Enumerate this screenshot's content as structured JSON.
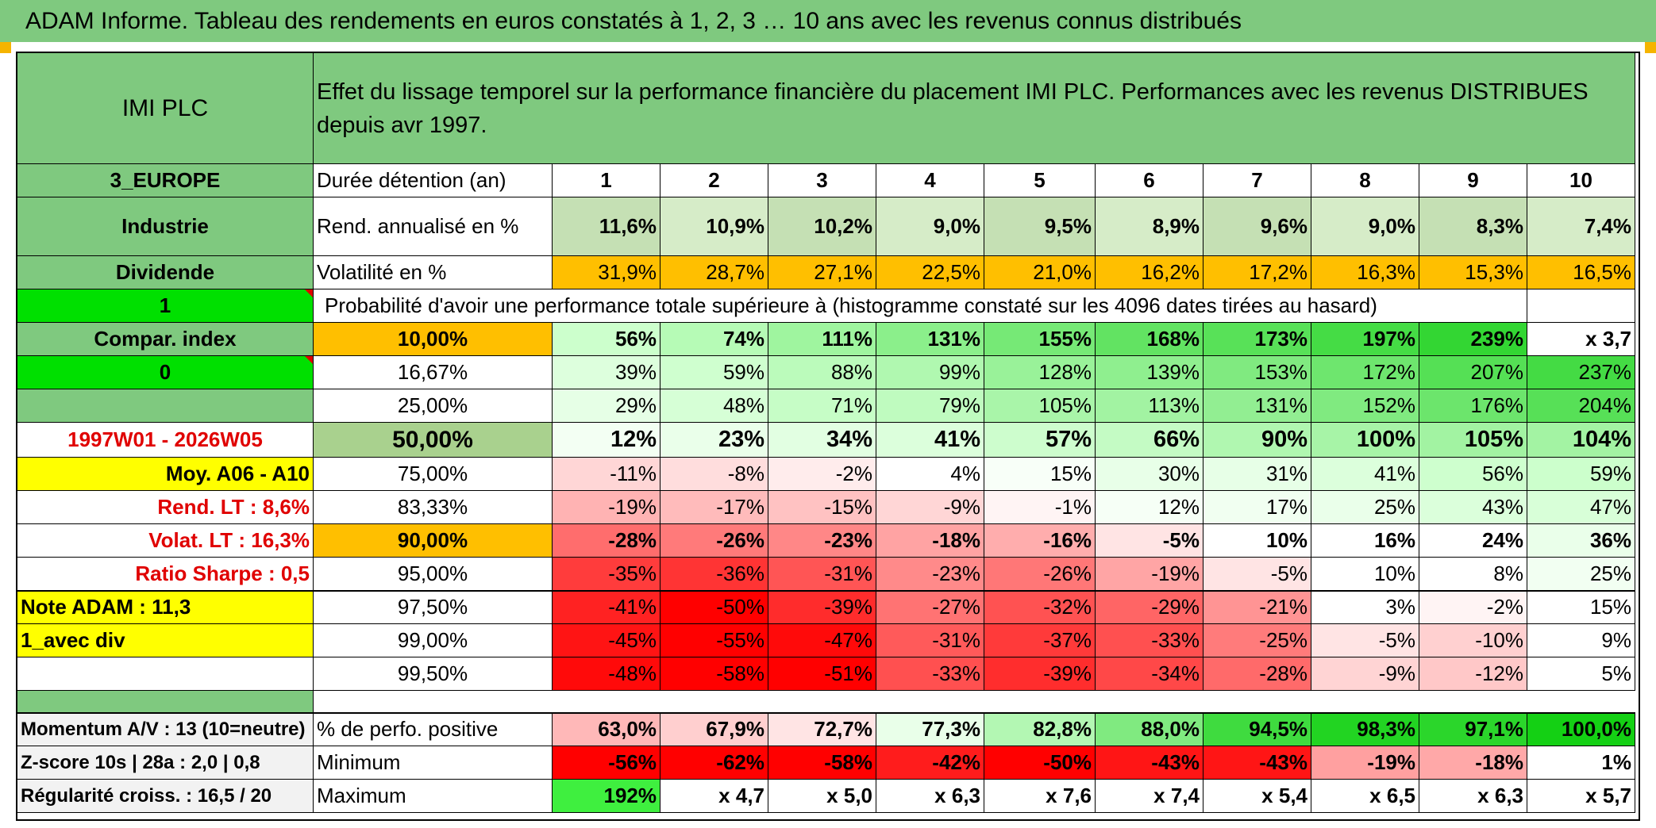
{
  "title": "ADAM Informe. Tableau des rendements en euros constatés à 1, 2, 3 … 10 ans avec les revenus connus distribués",
  "header": {
    "name": "IMI PLC",
    "description": "Effet du lissage temporel sur la performance financière du placement IMI PLC. Performances avec les revenus DISTRIBUES depuis avr 1997."
  },
  "side": {
    "region": "3_EUROPE",
    "sector": "Industrie",
    "dividend": "Dividende",
    "flag1": "1",
    "compar": "Compar. index",
    "flag0": "0",
    "period": "1997W01 - 2026W05",
    "moy": "Moy. A06 - A10",
    "rend_lt": "Rend. LT :   8,6%",
    "volat_lt": "Volat. LT :   16,3%",
    "sharpe": "Ratio Sharpe :   0,5",
    "note": "Note ADAM : 11,3",
    "div": "1_avec div"
  },
  "main": {
    "duration_label": "Durée détention (an)",
    "years": [
      "1",
      "2",
      "3",
      "4",
      "5",
      "6",
      "7",
      "8",
      "9",
      "10"
    ],
    "rend_label": "Rend. annualisé en %",
    "rend": [
      "11,6%",
      "10,9%",
      "10,2%",
      "9,0%",
      "9,5%",
      "8,9%",
      "9,6%",
      "9,0%",
      "8,3%",
      "7,4%"
    ],
    "vol_label": "Volatilité en %",
    "vol": [
      "31,9%",
      "28,7%",
      "27,1%",
      "22,5%",
      "21,0%",
      "16,2%",
      "17,2%",
      "16,3%",
      "15,3%",
      "16,5%"
    ],
    "proba_label": "Probabilité d'avoir une performance totale supérieure à (histogramme constaté sur les 4096 dates tirées au hasard)",
    "rows": [
      {
        "p": "10,00%",
        "v": [
          "56%",
          "74%",
          "111%",
          "131%",
          "155%",
          "168%",
          "173%",
          "197%",
          "239%",
          "x 3,7"
        ],
        "bg": [
          "#ccffcc",
          "#b6fbb6",
          "#9ff59f",
          "#8bef8b",
          "#76e976",
          "#62e362",
          "#58e158",
          "#45dc45",
          "#33d633",
          "#ffffff"
        ]
      },
      {
        "p": "16,67%",
        "v": [
          "39%",
          "59%",
          "88%",
          "99%",
          "128%",
          "139%",
          "153%",
          "172%",
          "207%",
          "237%"
        ],
        "bg": [
          "#ddffdd",
          "#cfffcf",
          "#bbfbbb",
          "#b0f8b0",
          "#99f299",
          "#8fef8f",
          "#80ea80",
          "#6ee66e",
          "#55e055",
          "#44db44"
        ]
      },
      {
        "p": "25,00%",
        "v": [
          "29%",
          "48%",
          "71%",
          "79%",
          "105%",
          "113%",
          "131%",
          "152%",
          "176%",
          "204%"
        ],
        "bg": [
          "#e6ffe6",
          "#d6ffd6",
          "#c6fdc6",
          "#bffbbf",
          "#a9f5a9",
          "#a2f3a2",
          "#92ee92",
          "#80ea80",
          "#6ce56c",
          "#57e057"
        ]
      },
      {
        "p": "50,00%",
        "v": [
          "12%",
          "23%",
          "34%",
          "41%",
          "57%",
          "66%",
          "90%",
          "100%",
          "105%",
          "104%"
        ],
        "bg": [
          "#f3fff3",
          "#eaffea",
          "#e2ffe2",
          "#dcffdc",
          "#cdfdcd",
          "#c4fbc4",
          "#b0f7b0",
          "#a7f4a7",
          "#a2f3a2",
          "#a3f3a3"
        ]
      },
      {
        "p": "75,00%",
        "v": [
          "-11%",
          "-8%",
          "-2%",
          "4%",
          "15%",
          "30%",
          "31%",
          "41%",
          "56%",
          "59%"
        ],
        "bg": [
          "#ffd6d6",
          "#ffdddd",
          "#ffecec",
          "#ffffff",
          "#f8fff8",
          "#e8ffe8",
          "#e7ffe7",
          "#dcffdc",
          "#ceffce",
          "#ccffcc"
        ]
      },
      {
        "p": "83,33%",
        "v": [
          "-19%",
          "-17%",
          "-15%",
          "-9%",
          "-1%",
          "12%",
          "17%",
          "25%",
          "43%",
          "47%"
        ],
        "bg": [
          "#ffb3b3",
          "#ffbbbb",
          "#ffc2c2",
          "#ffd6d6",
          "#fff4f4",
          "#f6fff6",
          "#f1fff1",
          "#eaffea",
          "#dbffdb",
          "#d8ffd8"
        ]
      },
      {
        "p": "90,00%",
        "v": [
          "-28%",
          "-26%",
          "-23%",
          "-18%",
          "-16%",
          "-5%",
          "10%",
          "16%",
          "24%",
          "36%"
        ],
        "bg": [
          "#ff6d6d",
          "#ff7a7a",
          "#ff8787",
          "#ffa3a3",
          "#ffadad",
          "#ffe4e4",
          "#ffffff",
          "#ffffff",
          "#ffffff",
          "#eaffea"
        ]
      },
      {
        "p": "95,00%",
        "v": [
          "-35%",
          "-36%",
          "-31%",
          "-23%",
          "-26%",
          "-19%",
          "-5%",
          "10%",
          "8%",
          "25%"
        ],
        "bg": [
          "#ff3c3c",
          "#ff3434",
          "#ff5555",
          "#ff8a8a",
          "#ff7777",
          "#ffa5a5",
          "#ffe4e4",
          "#ffffff",
          "#ffffff",
          "#f2fff2"
        ]
      },
      {
        "p": "97,50%",
        "v": [
          "-41%",
          "-50%",
          "-39%",
          "-27%",
          "-32%",
          "-29%",
          "-21%",
          "3%",
          "-2%",
          "15%"
        ],
        "bg": [
          "#ff2222",
          "#ff0000",
          "#ff2c2c",
          "#ff7373",
          "#ff5252",
          "#ff6565",
          "#ff9494",
          "#ffffff",
          "#fff4f4",
          "#ffffff"
        ]
      },
      {
        "p": "99,00%",
        "v": [
          "-45%",
          "-55%",
          "-47%",
          "-31%",
          "-37%",
          "-33%",
          "-25%",
          "-5%",
          "-10%",
          "9%"
        ],
        "bg": [
          "#ff1414",
          "#ff0000",
          "#ff0a0a",
          "#ff5a5a",
          "#ff3a3a",
          "#ff5050",
          "#ff7b7b",
          "#ffe4e4",
          "#ffd0d0",
          "#ffffff"
        ]
      },
      {
        "p": "99,50%",
        "v": [
          "-48%",
          "-58%",
          "-51%",
          "-33%",
          "-39%",
          "-34%",
          "-28%",
          "-9%",
          "-12%",
          "5%"
        ],
        "bg": [
          "#ff0a0a",
          "#ff0000",
          "#ff0000",
          "#ff5050",
          "#ff2d2d",
          "#ff4848",
          "#ff6a6a",
          "#ffd4d4",
          "#ffc8c8",
          "#ffffff"
        ]
      }
    ],
    "pos_label": "% de perfo. positive",
    "pos": [
      "63,0%",
      "67,9%",
      "72,7%",
      "77,3%",
      "82,8%",
      "88,0%",
      "94,5%",
      "98,3%",
      "97,1%",
      "100,0%"
    ],
    "pos_bg": [
      "#ffb8b8",
      "#ffcfcf",
      "#ffe4e4",
      "#e9ffe9",
      "#b3f7b3",
      "#80ea80",
      "#3fdb3f",
      "#22d422",
      "#2bd62b",
      "#14d014"
    ],
    "min_label": "Minimum",
    "min": [
      "-56%",
      "-62%",
      "-58%",
      "-42%",
      "-50%",
      "-43%",
      "-43%",
      "-19%",
      "-18%",
      "1%"
    ],
    "min_bg": [
      "#ff0000",
      "#ff0000",
      "#ff0000",
      "#ff1c1c",
      "#ff0000",
      "#ff1515",
      "#ff1515",
      "#ffa0a0",
      "#ffa8a8",
      "#ffffff"
    ],
    "max_label": "Maximum",
    "max": [
      "192%",
      "x 4,7",
      "x 5,0",
      "x 6,3",
      "x 7,6",
      "x 7,4",
      "x 5,4",
      "x 6,5",
      "x 6,3",
      "x 5,7"
    ],
    "max_bg": [
      "#3fef3f",
      "#ffffff",
      "#ffffff",
      "#ffffff",
      "#ffffff",
      "#ffffff",
      "#ffffff",
      "#ffffff",
      "#ffffff",
      "#ffffff"
    ]
  },
  "footer": {
    "momentum": "Momentum A/V : 13 (10=neutre)",
    "zscore": "Z-score 10s | 28a : 2,0 | 0,8",
    "regularite": "Régularité croiss. : 16,5 / 20"
  },
  "colors": {
    "green_header": "#7fc97f",
    "light_green": "#a9d18e",
    "orange": "#ffbf00",
    "yellow": "#ffff00",
    "bright_green": "#00e000",
    "red_text": "#e00000"
  }
}
